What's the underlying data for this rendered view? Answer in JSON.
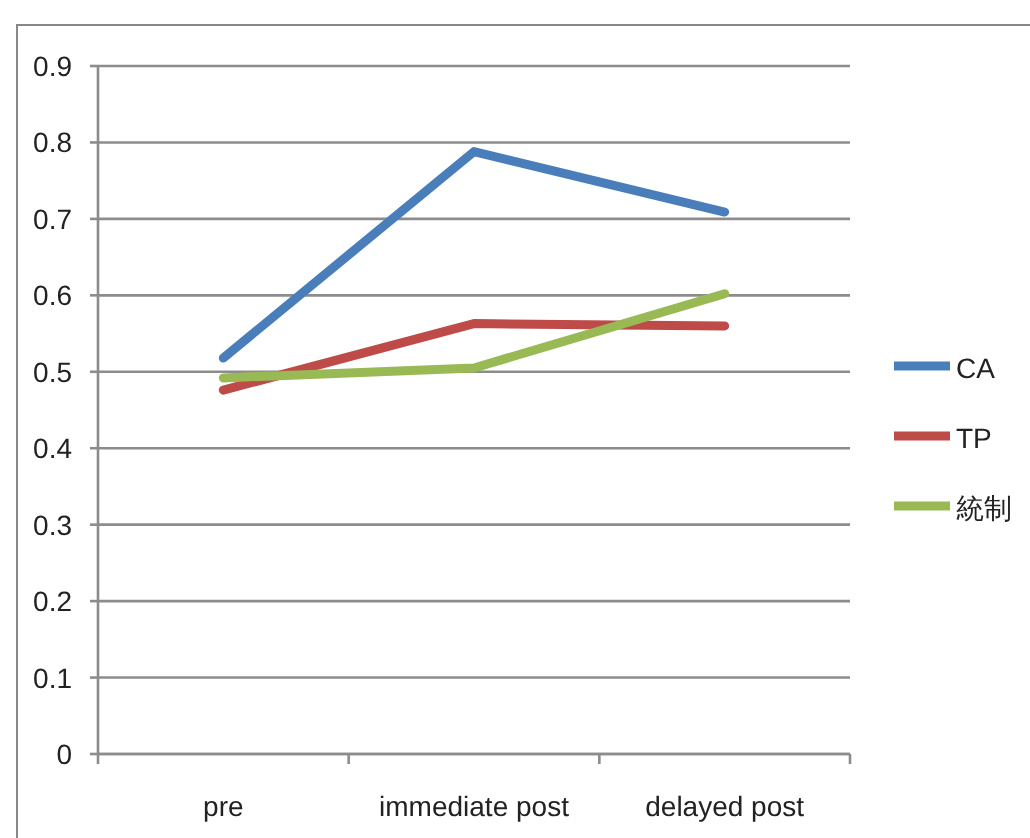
{
  "chart_data": {
    "type": "line",
    "categories": [
      "pre",
      "immediate post",
      "delayed post"
    ],
    "series": [
      {
        "name": "CA",
        "color": "#4a7ebb",
        "values": [
          0.518,
          0.788,
          0.709
        ]
      },
      {
        "name": "TP",
        "color": "#be4b48",
        "values": [
          0.476,
          0.563,
          0.56
        ]
      },
      {
        "name": "統制",
        "color": "#98b954",
        "values": [
          0.492,
          0.505,
          0.602
        ]
      }
    ],
    "ylim": [
      0,
      0.9
    ],
    "yticks": [
      0,
      0.1,
      0.2,
      0.3,
      0.4,
      0.5,
      0.6,
      0.7,
      0.8,
      0.9
    ],
    "grid": "y",
    "legend": "right",
    "marker": "none",
    "line_style": "solid"
  }
}
